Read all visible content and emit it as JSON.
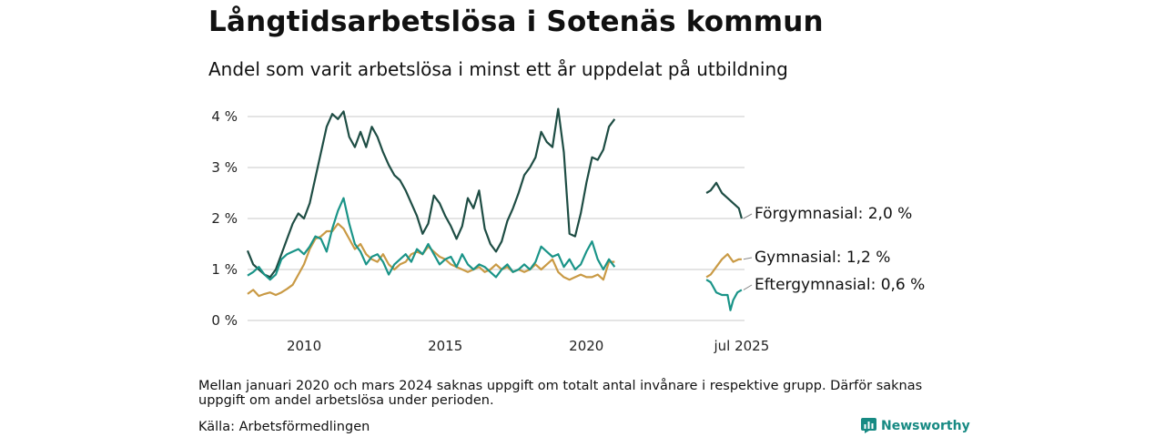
{
  "title": "Långtidsarbetslösa i Sotenäs kommun",
  "subtitle": "Andel som varit arbetslösa i minst ett år uppdelat på utbildning",
  "note": "Mellan januari 2020 och mars 2024 saknas uppgift om totalt antal invånare i respektive grupp. Därför saknas uppgift om andel arbetslösa under perioden.",
  "source": "Källa: Arbetsförmedlingen",
  "brand": "Newsworthy",
  "chart_data": {
    "type": "line",
    "title": "Långtidsarbetslösa i Sotenäs kommun",
    "subtitle": "Andel som varit arbetslösa i minst ett år uppdelat på utbildning",
    "ylim": [
      0,
      4.25
    ],
    "yticks": [
      0,
      1,
      2,
      3,
      4
    ],
    "ytick_labels": [
      "0 %",
      "1 %",
      "2 %",
      "3 %",
      "4 %"
    ],
    "xlim": [
      2008.0,
      2025.6
    ],
    "xticks": [
      2010,
      2015,
      2020,
      2025.5
    ],
    "xtick_labels": [
      "2010",
      "2015",
      "2020",
      "jul 2025"
    ],
    "grid": true,
    "legend": "direct labels at line ends",
    "series": [
      {
        "name": "Förgymnasial",
        "end_label": "Förgymnasial: 2,0 %",
        "color": "#1e4d44",
        "segments": [
          [
            [
              2008.0,
              1.37
            ],
            [
              2008.2,
              1.1
            ],
            [
              2008.4,
              1.0
            ],
            [
              2008.6,
              0.9
            ],
            [
              2008.8,
              0.85
            ],
            [
              2009.0,
              1.0
            ],
            [
              2009.2,
              1.3
            ],
            [
              2009.4,
              1.6
            ],
            [
              2009.6,
              1.9
            ],
            [
              2009.8,
              2.1
            ],
            [
              2010.0,
              2.0
            ],
            [
              2010.2,
              2.3
            ],
            [
              2010.4,
              2.8
            ],
            [
              2010.6,
              3.3
            ],
            [
              2010.8,
              3.8
            ],
            [
              2011.0,
              4.05
            ],
            [
              2011.2,
              3.95
            ],
            [
              2011.4,
              4.1
            ],
            [
              2011.6,
              3.6
            ],
            [
              2011.8,
              3.4
            ],
            [
              2012.0,
              3.7
            ],
            [
              2012.2,
              3.4
            ],
            [
              2012.4,
              3.8
            ],
            [
              2012.6,
              3.6
            ],
            [
              2012.8,
              3.3
            ],
            [
              2013.0,
              3.05
            ],
            [
              2013.2,
              2.85
            ],
            [
              2013.4,
              2.75
            ],
            [
              2013.6,
              2.55
            ],
            [
              2013.8,
              2.3
            ],
            [
              2014.0,
              2.05
            ],
            [
              2014.2,
              1.7
            ],
            [
              2014.4,
              1.9
            ],
            [
              2014.6,
              2.45
            ],
            [
              2014.8,
              2.3
            ],
            [
              2015.0,
              2.05
            ],
            [
              2015.2,
              1.85
            ],
            [
              2015.4,
              1.6
            ],
            [
              2015.6,
              1.85
            ],
            [
              2015.8,
              2.4
            ],
            [
              2016.0,
              2.2
            ],
            [
              2016.2,
              2.55
            ],
            [
              2016.4,
              1.8
            ],
            [
              2016.6,
              1.5
            ],
            [
              2016.8,
              1.35
            ],
            [
              2017.0,
              1.55
            ],
            [
              2017.2,
              1.95
            ],
            [
              2017.4,
              2.2
            ],
            [
              2017.6,
              2.5
            ],
            [
              2017.8,
              2.85
            ],
            [
              2018.0,
              3.0
            ],
            [
              2018.2,
              3.2
            ],
            [
              2018.4,
              3.7
            ],
            [
              2018.6,
              3.5
            ],
            [
              2018.8,
              3.4
            ],
            [
              2019.0,
              4.15
            ],
            [
              2019.2,
              3.3
            ],
            [
              2019.4,
              1.7
            ],
            [
              2019.6,
              1.65
            ],
            [
              2019.8,
              2.1
            ],
            [
              2020.0,
              2.7
            ],
            [
              2020.2,
              3.2
            ],
            [
              2020.4,
              3.15
            ],
            [
              2020.6,
              3.35
            ],
            [
              2020.8,
              3.8
            ],
            [
              2021.0,
              3.95
            ]
          ],
          [
            [
              2024.25,
              2.5
            ],
            [
              2024.4,
              2.55
            ],
            [
              2024.6,
              2.7
            ],
            [
              2024.8,
              2.5
            ],
            [
              2025.0,
              2.4
            ],
            [
              2025.2,
              2.3
            ],
            [
              2025.4,
              2.2
            ],
            [
              2025.5,
              2.0
            ]
          ]
        ]
      },
      {
        "name": "Gymnasial",
        "end_label": "Gymnasial: 1,2 %",
        "color": "#c99a45",
        "segments": [
          [
            [
              2008.0,
              0.52
            ],
            [
              2008.2,
              0.6
            ],
            [
              2008.4,
              0.48
            ],
            [
              2008.6,
              0.52
            ],
            [
              2008.8,
              0.55
            ],
            [
              2009.0,
              0.5
            ],
            [
              2009.2,
              0.55
            ],
            [
              2009.4,
              0.62
            ],
            [
              2009.6,
              0.7
            ],
            [
              2009.8,
              0.9
            ],
            [
              2010.0,
              1.1
            ],
            [
              2010.2,
              1.4
            ],
            [
              2010.4,
              1.6
            ],
            [
              2010.6,
              1.65
            ],
            [
              2010.8,
              1.75
            ],
            [
              2011.0,
              1.75
            ],
            [
              2011.2,
              1.9
            ],
            [
              2011.4,
              1.8
            ],
            [
              2011.6,
              1.6
            ],
            [
              2011.8,
              1.4
            ],
            [
              2012.0,
              1.5
            ],
            [
              2012.2,
              1.3
            ],
            [
              2012.4,
              1.2
            ],
            [
              2012.6,
              1.15
            ],
            [
              2012.8,
              1.3
            ],
            [
              2013.0,
              1.1
            ],
            [
              2013.2,
              1.0
            ],
            [
              2013.4,
              1.1
            ],
            [
              2013.6,
              1.15
            ],
            [
              2013.8,
              1.3
            ],
            [
              2014.0,
              1.35
            ],
            [
              2014.2,
              1.3
            ],
            [
              2014.4,
              1.45
            ],
            [
              2014.6,
              1.35
            ],
            [
              2014.8,
              1.25
            ],
            [
              2015.0,
              1.2
            ],
            [
              2015.2,
              1.1
            ],
            [
              2015.4,
              1.05
            ],
            [
              2015.6,
              1.0
            ],
            [
              2015.8,
              0.95
            ],
            [
              2016.0,
              1.0
            ],
            [
              2016.2,
              1.05
            ],
            [
              2016.4,
              0.95
            ],
            [
              2016.6,
              1.0
            ],
            [
              2016.8,
              1.1
            ],
            [
              2017.0,
              1.0
            ],
            [
              2017.2,
              1.05
            ],
            [
              2017.4,
              0.95
            ],
            [
              2017.6,
              1.0
            ],
            [
              2017.8,
              0.95
            ],
            [
              2018.0,
              1.0
            ],
            [
              2018.2,
              1.1
            ],
            [
              2018.4,
              1.0
            ],
            [
              2018.6,
              1.1
            ],
            [
              2018.8,
              1.2
            ],
            [
              2019.0,
              0.95
            ],
            [
              2019.2,
              0.85
            ],
            [
              2019.4,
              0.8
            ],
            [
              2019.6,
              0.85
            ],
            [
              2019.8,
              0.9
            ],
            [
              2020.0,
              0.85
            ],
            [
              2020.2,
              0.85
            ],
            [
              2020.4,
              0.9
            ],
            [
              2020.6,
              0.8
            ],
            [
              2020.8,
              1.15
            ],
            [
              2021.0,
              1.15
            ]
          ],
          [
            [
              2024.25,
              0.85
            ],
            [
              2024.4,
              0.9
            ],
            [
              2024.6,
              1.05
            ],
            [
              2024.8,
              1.2
            ],
            [
              2025.0,
              1.3
            ],
            [
              2025.2,
              1.15
            ],
            [
              2025.4,
              1.2
            ],
            [
              2025.5,
              1.2
            ]
          ]
        ]
      },
      {
        "name": "Eftergymnasial",
        "end_label": "Eftergymnasial: 0,6 %",
        "color": "#1a9488",
        "segments": [
          [
            [
              2008.0,
              0.88
            ],
            [
              2008.2,
              0.95
            ],
            [
              2008.4,
              1.05
            ],
            [
              2008.6,
              0.9
            ],
            [
              2008.8,
              0.8
            ],
            [
              2009.0,
              0.9
            ],
            [
              2009.2,
              1.2
            ],
            [
              2009.4,
              1.3
            ],
            [
              2009.6,
              1.35
            ],
            [
              2009.8,
              1.4
            ],
            [
              2010.0,
              1.3
            ],
            [
              2010.2,
              1.45
            ],
            [
              2010.4,
              1.65
            ],
            [
              2010.6,
              1.6
            ],
            [
              2010.8,
              1.35
            ],
            [
              2011.0,
              1.8
            ],
            [
              2011.2,
              2.15
            ],
            [
              2011.4,
              2.4
            ],
            [
              2011.6,
              1.9
            ],
            [
              2011.8,
              1.5
            ],
            [
              2012.0,
              1.35
            ],
            [
              2012.2,
              1.1
            ],
            [
              2012.4,
              1.25
            ],
            [
              2012.6,
              1.3
            ],
            [
              2012.8,
              1.15
            ],
            [
              2013.0,
              0.9
            ],
            [
              2013.2,
              1.1
            ],
            [
              2013.4,
              1.2
            ],
            [
              2013.6,
              1.3
            ],
            [
              2013.8,
              1.15
            ],
            [
              2014.0,
              1.4
            ],
            [
              2014.2,
              1.3
            ],
            [
              2014.4,
              1.5
            ],
            [
              2014.6,
              1.3
            ],
            [
              2014.8,
              1.1
            ],
            [
              2015.0,
              1.2
            ],
            [
              2015.2,
              1.25
            ],
            [
              2015.4,
              1.05
            ],
            [
              2015.6,
              1.3
            ],
            [
              2015.8,
              1.1
            ],
            [
              2016.0,
              1.0
            ],
            [
              2016.2,
              1.1
            ],
            [
              2016.4,
              1.05
            ],
            [
              2016.6,
              0.95
            ],
            [
              2016.8,
              0.85
            ],
            [
              2017.0,
              1.0
            ],
            [
              2017.2,
              1.1
            ],
            [
              2017.4,
              0.95
            ],
            [
              2017.6,
              1.0
            ],
            [
              2017.8,
              1.1
            ],
            [
              2018.0,
              1.0
            ],
            [
              2018.2,
              1.15
            ],
            [
              2018.4,
              1.45
            ],
            [
              2018.6,
              1.35
            ],
            [
              2018.8,
              1.25
            ],
            [
              2019.0,
              1.3
            ],
            [
              2019.2,
              1.05
            ],
            [
              2019.4,
              1.2
            ],
            [
              2019.6,
              1.0
            ],
            [
              2019.8,
              1.1
            ],
            [
              2020.0,
              1.35
            ],
            [
              2020.2,
              1.55
            ],
            [
              2020.4,
              1.2
            ],
            [
              2020.6,
              1.0
            ],
            [
              2020.8,
              1.2
            ],
            [
              2021.0,
              1.05
            ]
          ],
          [
            [
              2024.25,
              0.8
            ],
            [
              2024.4,
              0.75
            ],
            [
              2024.6,
              0.55
            ],
            [
              2024.8,
              0.5
            ],
            [
              2025.0,
              0.5
            ],
            [
              2025.1,
              0.2
            ],
            [
              2025.2,
              0.4
            ],
            [
              2025.35,
              0.55
            ],
            [
              2025.5,
              0.6
            ]
          ]
        ]
      }
    ]
  }
}
